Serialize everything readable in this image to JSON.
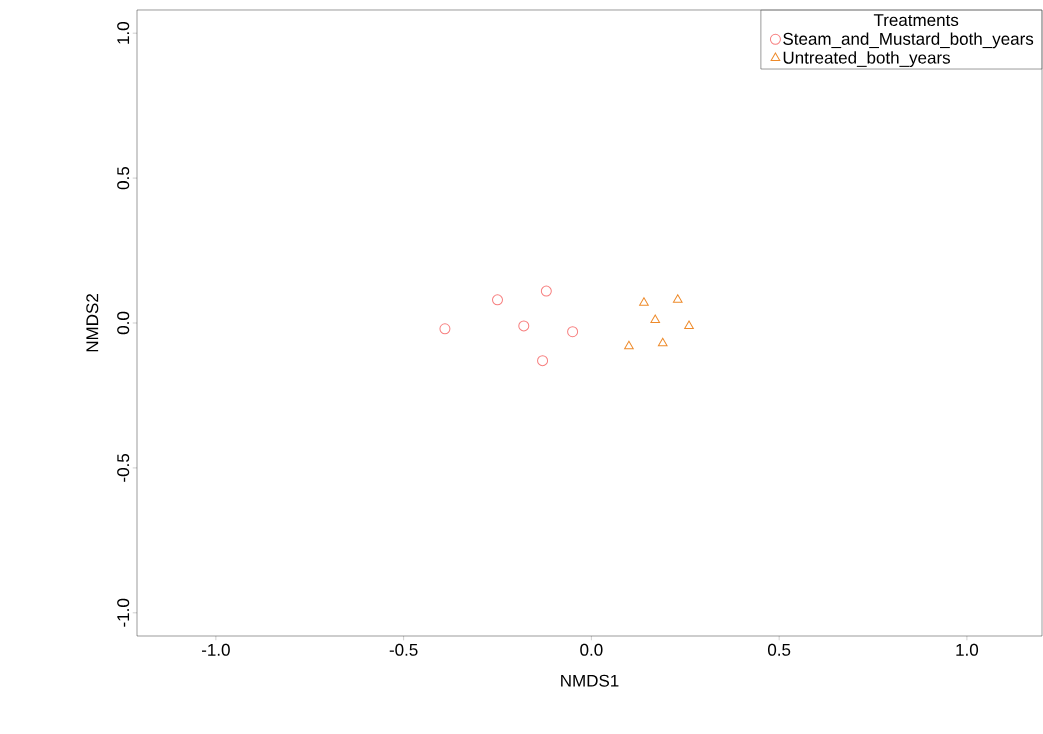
{
  "chart_data": {
    "type": "scatter",
    "xlabel": "NMDS1",
    "ylabel": "NMDS2",
    "legend_title": "Treatments",
    "legend": "top right",
    "series": [
      {
        "name": "Steam_and_Mustard_both_years",
        "color": "#f77f7f",
        "marker": "circle",
        "x": [
          -0.39,
          -0.25,
          -0.12,
          -0.18,
          -0.05,
          -0.13
        ],
        "values": [
          -0.02,
          0.08,
          0.11,
          -0.01,
          -0.03,
          -0.13
        ]
      },
      {
        "name": "Untreated_both_years",
        "color": "#ee8a2a",
        "marker": "triangle",
        "x": [
          0.14,
          0.23,
          0.17,
          0.26,
          0.1,
          0.19
        ],
        "values": [
          0.07,
          0.08,
          0.01,
          -0.01,
          -0.08,
          -0.07
        ]
      }
    ],
    "xlim": [
      -1.21,
      1.2
    ],
    "ylim": [
      -1.08,
      1.08
    ],
    "xticks": [
      {
        "value": -1,
        "label": "-1.0"
      },
      -0.5,
      {
        "value": 0,
        "label": "0.0"
      },
      0.5,
      {
        "value": 1,
        "label": "1.0"
      }
    ],
    "yticks": [
      {
        "value": -1,
        "label": "-1.0"
      },
      -0.5,
      {
        "value": 0,
        "label": "0.0"
      },
      0.5,
      {
        "value": 1,
        "label": "1.0"
      }
    ]
  }
}
